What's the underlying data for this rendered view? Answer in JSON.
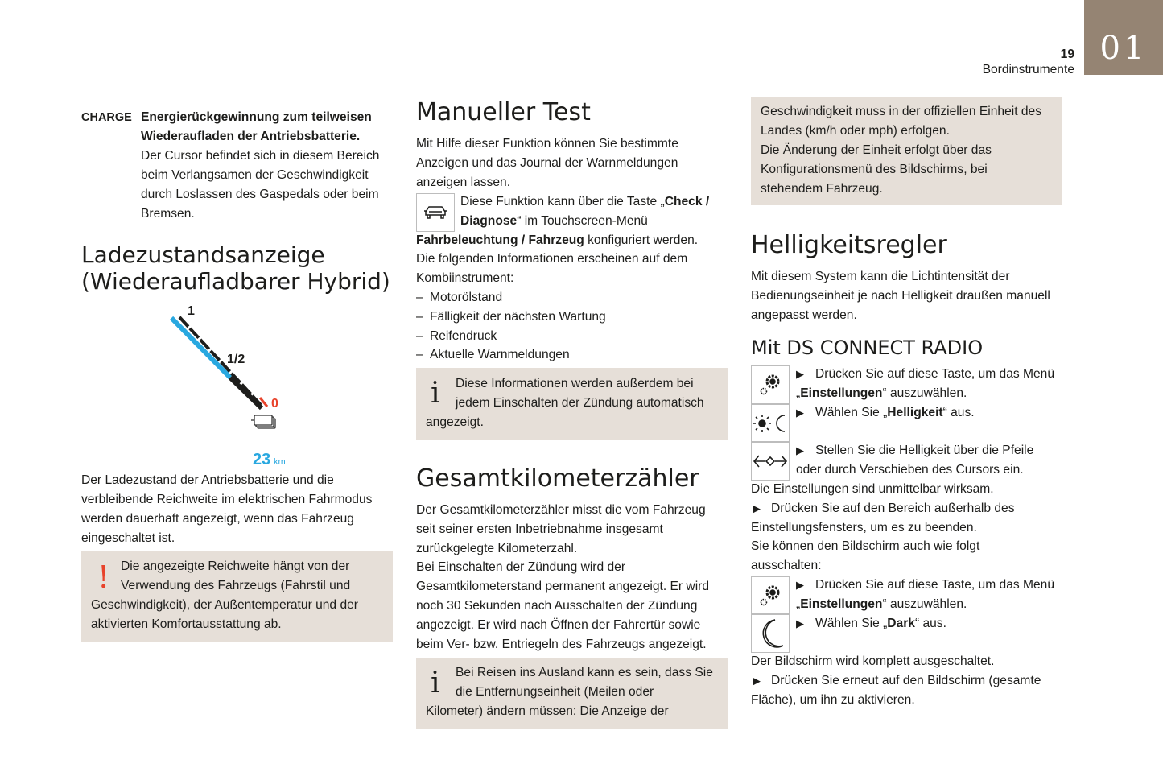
{
  "header": {
    "page_number": "19",
    "section": "Bordinstrumente",
    "chapter_tab": "01",
    "tab_color": "#958473",
    "box_color": "#e6dfd8",
    "gauge_blue": "#29a8e0",
    "gauge_red": "#e8432b"
  },
  "left": {
    "charge_label": "CHARGE",
    "charge_lines": [
      "Energierückgewinnung zum teilweisen",
      "Wiederaufladen der Antriebsbatterie.",
      "Der Cursor befindet sich in diesem Bereich",
      "beim Verlangsamen der Geschwindigkeit",
      "durch Loslassen des Gaspedals oder beim",
      "Bremsen."
    ],
    "heading": [
      "Ladezustandsanzeige",
      "(Wiederaufladbarer Hybrid)"
    ],
    "gauge": {
      "label_full": "1",
      "label_half": "1/2",
      "label_empty": "0",
      "range_value": "23",
      "range_unit": "km",
      "icon": "battery-icon"
    },
    "para": [
      "Der Ladezustand der Antriebsbatterie und die",
      "verbleibende Reichweite im elektrischen Fahrmodus",
      "werden dauerhaft angezeigt, wenn das Fahrzeug",
      "eingeschaltet ist."
    ],
    "warning": {
      "icon": "exclamation-icon",
      "lines": [
        "Die angezeigte Reichweite hängt von der",
        "Verwendung des Fahrzeugs (Fahrstil und",
        "Geschwindigkeit), der Außentemperatur und der",
        "aktivierten Komfortausstattung ab."
      ]
    }
  },
  "middle": {
    "heading1": "Manueller Test",
    "para1": [
      "Mit Hilfe dieser Funktion können Sie bestimmte",
      "Anzeigen und das Journal der Warnmeldungen",
      "anzeigen lassen."
    ],
    "car_icon": "car-icon",
    "rich": {
      "l1a": "Diese Funktion kann über die Taste „",
      "l1b": "Check /",
      "l2a": "Diagnose",
      "l2b": "“ im Touchscreen-Menü",
      "l3a": "Fahrbeleuchtung / Fahrzeug",
      "l3b": " konfiguriert werden."
    },
    "para2": [
      "Die folgenden Informationen erscheinen auf dem",
      "Kombiinstrument:"
    ],
    "list": [
      "Motorölstand",
      "Fälligkeit der nächsten Wartung",
      "Reifendruck",
      "Aktuelle Warnmeldungen"
    ],
    "list_dash": "–",
    "info1": [
      "Diese Informationen werden außerdem bei",
      "jedem Einschalten der Zündung automatisch",
      "angezeigt."
    ],
    "heading2": "Gesamtkilometerzähler",
    "para3": [
      "Der Gesamtkilometerzähler misst die vom Fahrzeug",
      "seit seiner ersten Inbetriebnahme insgesamt",
      "zurückgelegte Kilometerzahl.",
      "Bei Einschalten der Zündung wird der",
      "Gesamtkilometerstand permanent angezeigt. Er wird",
      "noch 30 Sekunden nach Ausschalten der Zündung",
      "angezeigt. Er wird nach Öffnen der Fahrertür sowie",
      "beim Ver- bzw. Entriegeln des Fahrzeugs angezeigt."
    ],
    "info2": [
      "Bei Reisen ins Ausland kann es sein, dass Sie",
      "die Entfernungseinheit (Meilen oder",
      "Kilometer) ändern müssen: Die Anzeige der"
    ],
    "info_icon": "info-icon"
  },
  "right": {
    "box": [
      "Geschwindigkeit muss in der offiziellen Einheit des",
      "Landes (km/h oder mph) erfolgen.",
      "Die Änderung der Einheit erfolgt über das",
      "Konfigurationsmenü des Bildschirms, bei",
      "stehendem Fahrzeug."
    ],
    "heading1": "Helligkeitsregler",
    "para1": [
      "Mit diesem System kann die Lichtintensität der",
      "Bedienungseinheit je nach Helligkeit draußen manuell",
      "angepasst werden."
    ],
    "heading2": "Mit DS CONNECT RADIO",
    "bullet": "▶",
    "s1a": "Drücken Sie auf diese Taste, um das Menü",
    "s1b_pre": "„",
    "s1b_bold": "Einstellungen",
    "s1b_post": "“ auszuwählen.",
    "s2_pre": "Wählen Sie „",
    "s2_bold": "Helligkeit",
    "s2_post": "“ aus.",
    "s3a": "Stellen Sie die Helligkeit über die Pfeile",
    "s3b": "oder durch Verschieben des Cursors ein.",
    "p1": "Die Einstellungen sind unmittelbar wirksam.",
    "s4a": "Drücken Sie auf den Bereich außerhalb des",
    "s4b": "Einstellungsfensters, um es zu beenden.",
    "p2a": "Sie können den Bildschirm auch wie folgt",
    "p2b": "ausschalten:",
    "s5a": "Drücken Sie auf diese Taste, um das Menü",
    "s5b_pre": "„",
    "s5b_bold": "Einstellungen",
    "s5b_post": "“ auszuwählen.",
    "s6_pre": "Wählen Sie „",
    "s6_bold": "Dark",
    "s6_post": "“ aus.",
    "p3": "Der Bildschirm wird komplett ausgeschaltet.",
    "s7a": "Drücken Sie erneut auf den Bildschirm (gesamte",
    "s7b": "Fläche), um ihn zu aktivieren.",
    "icons": [
      "settings-icon",
      "brightness-icon",
      "arrows-icon",
      "settings-icon",
      "moon-icon"
    ]
  }
}
